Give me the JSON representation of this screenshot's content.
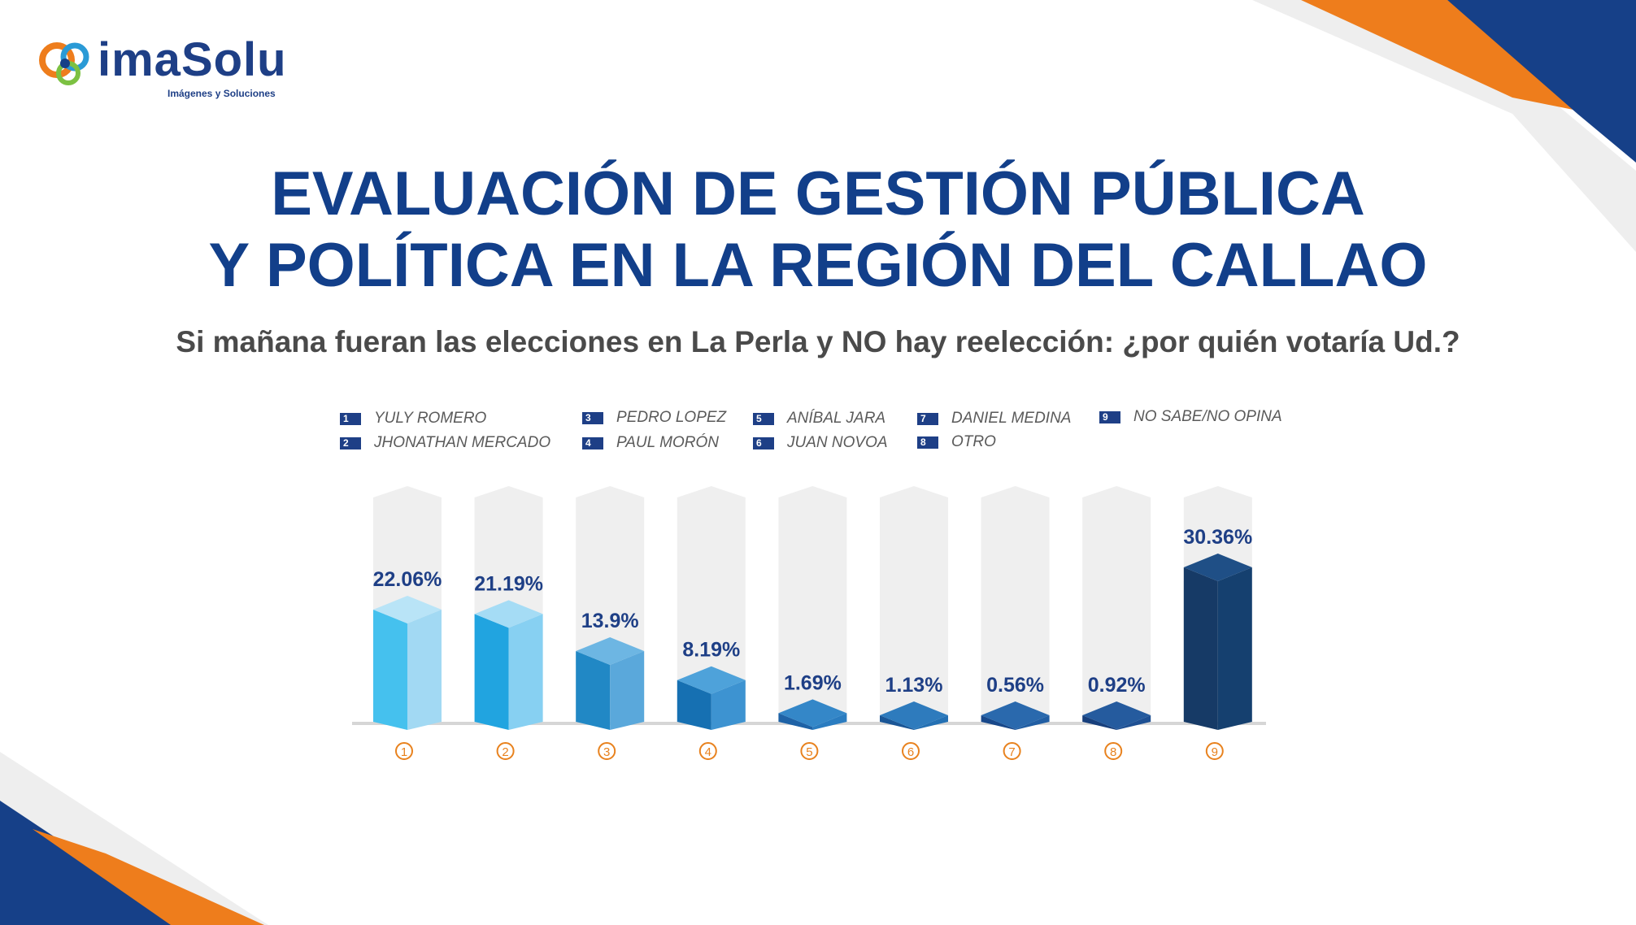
{
  "logo": {
    "name": "imaSolu",
    "tagline": "Imágenes y Soluciones"
  },
  "title": {
    "line1": "EVALUACIÓN DE GESTIÓN PÚBLICA",
    "line2": "Y POLÍTICA EN LA REGIÓN DEL CALLAO"
  },
  "subtitle": "Si mañana fueran las elecciones en La Perla y NO hay reelección: ¿por quién votaría Ud.?",
  "legend": [
    {
      "num": "1",
      "label": "YULY ROMERO"
    },
    {
      "num": "2",
      "label": "JHONATHAN MERCADO"
    },
    {
      "num": "3",
      "label": "PEDRO LOPEZ"
    },
    {
      "num": "4",
      "label": "PAUL MORÓN"
    },
    {
      "num": "5",
      "label": "ANÍBAL JARA"
    },
    {
      "num": "6",
      "label": "JUAN NOVOA"
    },
    {
      "num": "7",
      "label": "DANIEL MEDINA"
    },
    {
      "num": "8",
      "label": "OTRO"
    },
    {
      "num": "9",
      "label": "NO SABE/NO OPINA"
    }
  ],
  "colors": {
    "title": "#123f8a",
    "value_label": "#1e3f86",
    "number_marker": "#e8821e",
    "orange": "#ee7d1c",
    "navy": "#164088",
    "track": "#efefef"
  },
  "chart_data": {
    "type": "bar",
    "categories": [
      "1",
      "2",
      "3",
      "4",
      "5",
      "6",
      "7",
      "8",
      "9"
    ],
    "category_names": [
      "YULY ROMERO",
      "JHONATHAN MERCADO",
      "PEDRO LOPEZ",
      "PAUL MORÓN",
      "ANÍBAL JARA",
      "JUAN NOVOA",
      "DANIEL MEDINA",
      "OTRO",
      "NO SABE/NO OPINA"
    ],
    "values": [
      22.06,
      21.19,
      13.9,
      8.19,
      1.69,
      1.13,
      0.56,
      0.92,
      30.36
    ],
    "value_labels": [
      "22.06%",
      "21.19%",
      "13.9%",
      "8.19%",
      "1.69%",
      "1.13%",
      "0.56%",
      "0.92%",
      "30.36%"
    ],
    "ylim": [
      0,
      30.36
    ],
    "bar_colors": [
      {
        "front": "#45c1ee",
        "side": "#a2d9f3",
        "top": "#b9e4f7"
      },
      {
        "front": "#21a4e0",
        "side": "#87d0f2",
        "top": "#a5dcf5"
      },
      {
        "front": "#2188c5",
        "side": "#5aa8db",
        "top": "#6db6e3"
      },
      {
        "front": "#1670b2",
        "side": "#3d93d1",
        "top": "#4ea2da"
      },
      {
        "front": "#1e62a6",
        "side": "#2a7cc0",
        "top": "#3487c8"
      },
      {
        "front": "#1a5696",
        "side": "#2470b3",
        "top": "#2e7bbd"
      },
      {
        "front": "#18488a",
        "side": "#215ea3",
        "top": "#2a69ad"
      },
      {
        "front": "#173f7c",
        "side": "#1e5093",
        "top": "#255b9e"
      },
      {
        "front": "#163a66",
        "side": "#15406f",
        "top": "#1f4f86"
      }
    ],
    "grid": false,
    "legend": "top"
  }
}
